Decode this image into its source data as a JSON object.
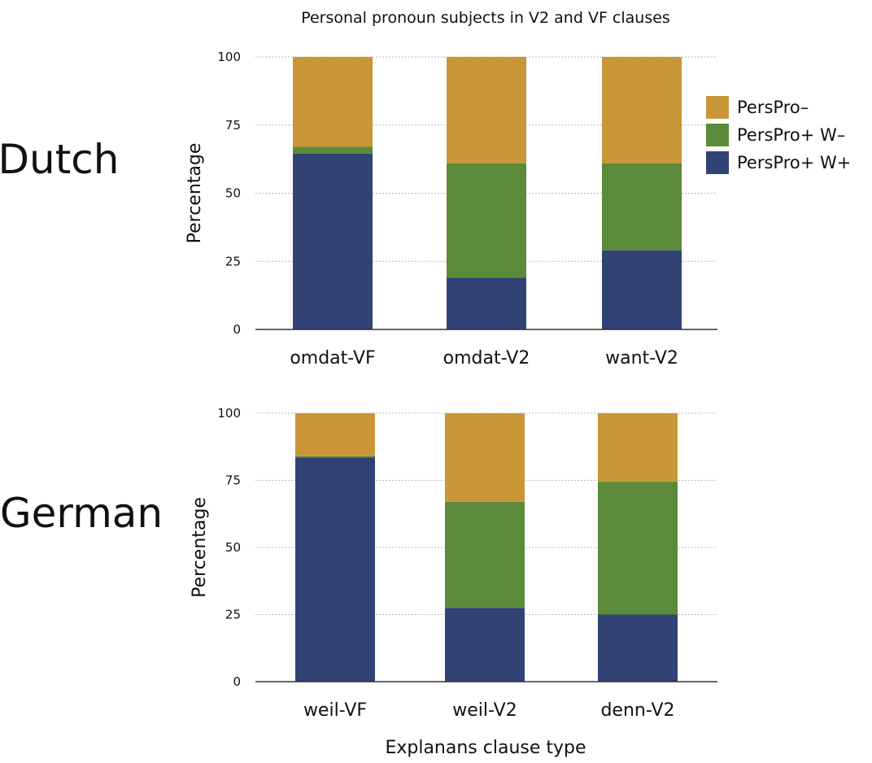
{
  "chart_data": {
    "type": "bar",
    "stacked": true,
    "title": "Personal pronoun subjects in V2 and VF clauses",
    "xlabel": "Explanans clause type",
    "ylabel": "Percentage",
    "ylim": [
      0,
      100
    ],
    "yticks": [
      0,
      25,
      50,
      75,
      100
    ],
    "grid": true,
    "legend": {
      "placement": "right of top panel",
      "entries": [
        "PersPro–",
        "PersPro+ W–",
        "PersPro+ W+"
      ]
    },
    "colors": {
      "PersPro–": "#c99638",
      "PersPro+ W–": "#5a8a3a",
      "PersPro+ W+": "#314275"
    },
    "panels": [
      {
        "label": "Dutch",
        "categories": [
          "omdat-VF",
          "omdat-V2",
          "want-V2"
        ],
        "series": [
          {
            "name": "PersPro+ W+",
            "values": [
              64.5,
              19,
              29
            ]
          },
          {
            "name": "PersPro+ W–",
            "values": [
              2.5,
              42,
              32
            ]
          },
          {
            "name": "PersPro–",
            "values": [
              33,
              39,
              39
            ]
          }
        ]
      },
      {
        "label": "German",
        "categories": [
          "weil-VF",
          "weil-V2",
          "denn-V2"
        ],
        "series": [
          {
            "name": "PersPro+ W+",
            "values": [
              83.5,
              27.5,
              25
            ]
          },
          {
            "name": "PersPro+ W–",
            "values": [
              0.5,
              39.5,
              49.5
            ]
          },
          {
            "name": "PersPro–",
            "values": [
              16,
              33,
              25.5
            ]
          }
        ]
      }
    ]
  }
}
